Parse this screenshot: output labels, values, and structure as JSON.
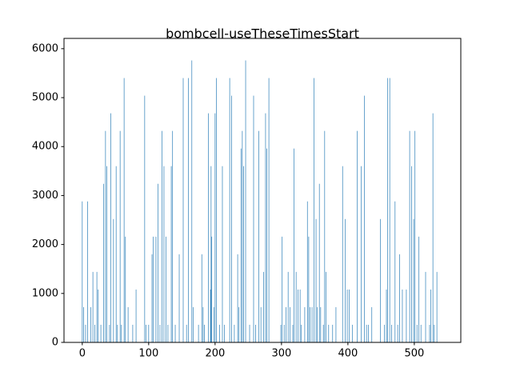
{
  "chart_data": {
    "type": "bar",
    "title": "bombcell-useTheseTimesStart",
    "color": "#1f77b4",
    "x": [
      0,
      2,
      5,
      8,
      13,
      16,
      19,
      22,
      24,
      28,
      32,
      35,
      37,
      41,
      43,
      47,
      51,
      53,
      57,
      59,
      63,
      65,
      69,
      76,
      81,
      94,
      96,
      100,
      105,
      107,
      111,
      114,
      117,
      120,
      123,
      126,
      129,
      134,
      136,
      140,
      146,
      152,
      157,
      160,
      165,
      167,
      175,
      180,
      182,
      184,
      190,
      193,
      194,
      195,
      198,
      200,
      202,
      207,
      211,
      214,
      222,
      225,
      229,
      234,
      236,
      239,
      241,
      243,
      246,
      252,
      258,
      261,
      266,
      269,
      273,
      276,
      278,
      281,
      299,
      301,
      304,
      307,
      310,
      313,
      317,
      319,
      322,
      325,
      328,
      330,
      335,
      339,
      341,
      343,
      346,
      349,
      352,
      354,
      357,
      359,
      363,
      365,
      367,
      371,
      377,
      382,
      392,
      396,
      399,
      402,
      407,
      414,
      420,
      425,
      428,
      431,
      436,
      449,
      455,
      458,
      460,
      463,
      466,
      471,
      475,
      478,
      482,
      488,
      493,
      496,
      499,
      501,
      504,
      507,
      510,
      517,
      523,
      525,
      528,
      530,
      534
    ],
    "values": [
      2880,
      720,
      360,
      2880,
      720,
      1440,
      360,
      1440,
      1080,
      360,
      3240,
      4320,
      3600,
      360,
      4680,
      2520,
      3600,
      360,
      4320,
      360,
      5400,
      2160,
      720,
      360,
      1080,
      5040,
      360,
      360,
      1800,
      2160,
      2160,
      3240,
      360,
      4320,
      3600,
      2160,
      360,
      3600,
      4320,
      360,
      1800,
      5400,
      360,
      5400,
      5760,
      720,
      360,
      1800,
      720,
      360,
      4680,
      1080,
      3600,
      2160,
      720,
      4680,
      5400,
      360,
      3600,
      360,
      5400,
      5040,
      360,
      1800,
      720,
      3960,
      4320,
      3600,
      5760,
      360,
      5040,
      360,
      4320,
      720,
      1440,
      4680,
      3960,
      5400,
      360,
      2160,
      360,
      720,
      1440,
      720,
      360,
      3960,
      1440,
      1080,
      1080,
      360,
      720,
      2880,
      2160,
      720,
      720,
      5400,
      2520,
      720,
      3240,
      720,
      360,
      4320,
      1440,
      360,
      360,
      720,
      3600,
      2520,
      1080,
      1080,
      360,
      4320,
      3600,
      5040,
      360,
      360,
      720,
      2520,
      360,
      1080,
      5400,
      5400,
      360,
      2880,
      360,
      1800,
      1080,
      1080,
      4320,
      3600,
      2520,
      4320,
      360,
      2160,
      360,
      1440,
      360,
      1080,
      4680,
      360,
      1440
    ],
    "xlim": [
      -27.5,
      570
    ],
    "ylim": [
      0,
      6210
    ],
    "xticks": [
      0,
      100,
      200,
      300,
      400,
      500
    ],
    "yticks": [
      0,
      1000,
      2000,
      3000,
      4000,
      5000,
      6000
    ]
  }
}
